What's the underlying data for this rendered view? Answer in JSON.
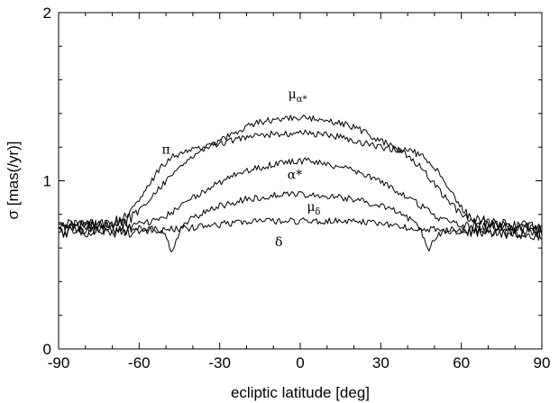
{
  "chart_data": {
    "type": "line",
    "xlabel": "ecliptic latitude [deg]",
    "ylabel": "σ [mas(/yr)]",
    "xlim": [
      -90,
      90
    ],
    "ylim": [
      0,
      2
    ],
    "x_ticks": [
      -90,
      -60,
      -30,
      0,
      30,
      60,
      90
    ],
    "y_ticks": [
      0,
      1,
      2
    ],
    "x_tick_labels": [
      "-90",
      "-60",
      "-30",
      "0",
      "30",
      "60",
      "90"
    ],
    "y_tick_labels": [
      "0",
      "1",
      "2"
    ],
    "grid": false,
    "series": [
      {
        "id": "mu_alpha",
        "label_main": "μ",
        "label_sub": "α*",
        "label_at": [
          -1,
          1.49
        ],
        "points": [
          [
            -90,
            0.74
          ],
          [
            -75,
            0.75
          ],
          [
            -65,
            0.76
          ],
          [
            -60,
            0.82
          ],
          [
            -55,
            0.92
          ],
          [
            -50,
            1.0
          ],
          [
            -45,
            1.08
          ],
          [
            -40,
            1.15
          ],
          [
            -35,
            1.2
          ],
          [
            -30,
            1.24
          ],
          [
            -25,
            1.28
          ],
          [
            -20,
            1.32
          ],
          [
            -15,
            1.35
          ],
          [
            -10,
            1.36
          ],
          [
            -5,
            1.37
          ],
          [
            0,
            1.38
          ],
          [
            5,
            1.37
          ],
          [
            10,
            1.36
          ],
          [
            15,
            1.34
          ],
          [
            20,
            1.32
          ],
          [
            25,
            1.28
          ],
          [
            30,
            1.24
          ],
          [
            35,
            1.2
          ],
          [
            40,
            1.15
          ],
          [
            45,
            1.08
          ],
          [
            50,
            0.98
          ],
          [
            55,
            0.88
          ],
          [
            60,
            0.8
          ],
          [
            65,
            0.76
          ],
          [
            75,
            0.74
          ],
          [
            90,
            0.72
          ]
        ]
      },
      {
        "id": "pi",
        "label_main": "π",
        "label_sub": "",
        "label_at": [
          -50,
          1.16
        ],
        "points": [
          [
            -90,
            0.73
          ],
          [
            -75,
            0.74
          ],
          [
            -68,
            0.76
          ],
          [
            -64,
            0.8
          ],
          [
            -60,
            0.88
          ],
          [
            -56,
            0.98
          ],
          [
            -52,
            1.08
          ],
          [
            -48,
            1.14
          ],
          [
            -44,
            1.17
          ],
          [
            -40,
            1.18
          ],
          [
            -35,
            1.2
          ],
          [
            -30,
            1.22
          ],
          [
            -25,
            1.24
          ],
          [
            -20,
            1.26
          ],
          [
            -15,
            1.27
          ],
          [
            -10,
            1.28
          ],
          [
            -5,
            1.28
          ],
          [
            0,
            1.29
          ],
          [
            5,
            1.28
          ],
          [
            10,
            1.27
          ],
          [
            15,
            1.26
          ],
          [
            20,
            1.24
          ],
          [
            25,
            1.22
          ],
          [
            30,
            1.2
          ],
          [
            35,
            1.19
          ],
          [
            40,
            1.18
          ],
          [
            44,
            1.16
          ],
          [
            48,
            1.12
          ],
          [
            52,
            1.04
          ],
          [
            56,
            0.94
          ],
          [
            60,
            0.84
          ],
          [
            64,
            0.78
          ],
          [
            70,
            0.75
          ],
          [
            80,
            0.73
          ],
          [
            90,
            0.71
          ]
        ]
      },
      {
        "id": "alpha",
        "label_main": "α*",
        "label_sub": "",
        "label_at": [
          -2,
          1.01
        ],
        "points": [
          [
            -90,
            0.73
          ],
          [
            -60,
            0.74
          ],
          [
            -55,
            0.76
          ],
          [
            -50,
            0.79
          ],
          [
            -45,
            0.84
          ],
          [
            -40,
            0.9
          ],
          [
            -35,
            0.95
          ],
          [
            -30,
            0.99
          ],
          [
            -25,
            1.03
          ],
          [
            -20,
            1.06
          ],
          [
            -15,
            1.08
          ],
          [
            -10,
            1.1
          ],
          [
            -5,
            1.11
          ],
          [
            0,
            1.12
          ],
          [
            5,
            1.11
          ],
          [
            10,
            1.1
          ],
          [
            15,
            1.08
          ],
          [
            20,
            1.06
          ],
          [
            25,
            1.03
          ],
          [
            30,
            0.99
          ],
          [
            35,
            0.95
          ],
          [
            40,
            0.9
          ],
          [
            45,
            0.85
          ],
          [
            50,
            0.79
          ],
          [
            55,
            0.76
          ],
          [
            60,
            0.74
          ],
          [
            90,
            0.71
          ]
        ]
      },
      {
        "id": "mu_delta",
        "label_main": "μ",
        "label_sub": "δ",
        "label_at": [
          5,
          0.82
        ],
        "points": [
          [
            -90,
            0.7
          ],
          [
            -65,
            0.71
          ],
          [
            -55,
            0.72
          ],
          [
            -50,
            0.68
          ],
          [
            -48,
            0.58
          ],
          [
            -46,
            0.66
          ],
          [
            -44,
            0.74
          ],
          [
            -40,
            0.78
          ],
          [
            -35,
            0.82
          ],
          [
            -30,
            0.85
          ],
          [
            -25,
            0.87
          ],
          [
            -20,
            0.89
          ],
          [
            -15,
            0.9
          ],
          [
            -10,
            0.91
          ],
          [
            -5,
            0.92
          ],
          [
            0,
            0.92
          ],
          [
            5,
            0.91
          ],
          [
            10,
            0.91
          ],
          [
            15,
            0.9
          ],
          [
            20,
            0.89
          ],
          [
            25,
            0.87
          ],
          [
            30,
            0.85
          ],
          [
            35,
            0.82
          ],
          [
            40,
            0.78
          ],
          [
            44,
            0.74
          ],
          [
            46,
            0.66
          ],
          [
            48,
            0.58
          ],
          [
            50,
            0.66
          ],
          [
            55,
            0.71
          ],
          [
            65,
            0.7
          ],
          [
            90,
            0.68
          ]
        ]
      },
      {
        "id": "delta",
        "label_main": "δ",
        "label_sub": "",
        "label_at": [
          -8,
          0.61
        ],
        "points": [
          [
            -90,
            0.69
          ],
          [
            -60,
            0.7
          ],
          [
            -50,
            0.71
          ],
          [
            -40,
            0.72
          ],
          [
            -30,
            0.74
          ],
          [
            -20,
            0.76
          ],
          [
            -10,
            0.76
          ],
          [
            0,
            0.76
          ],
          [
            10,
            0.76
          ],
          [
            20,
            0.76
          ],
          [
            30,
            0.74
          ],
          [
            40,
            0.72
          ],
          [
            50,
            0.71
          ],
          [
            60,
            0.7
          ],
          [
            90,
            0.68
          ]
        ]
      }
    ]
  }
}
